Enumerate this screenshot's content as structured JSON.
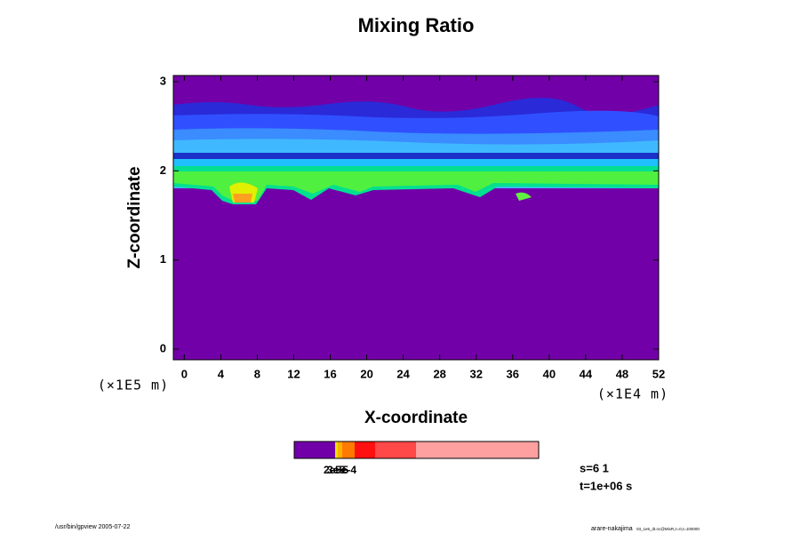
{
  "chart_data": {
    "type": "contour",
    "title": "Mixing Ratio",
    "x_label": "X-coordinate",
    "y_label": "Z-coordinate",
    "x_unit": "(×1E4 m)",
    "y_unit": "(×1E5 m)",
    "xlim": [
      -1.2,
      52
    ],
    "ylim": [
      -0.12,
      3.07
    ],
    "xticks": [
      0,
      4,
      8,
      12,
      16,
      20,
      24,
      28,
      32,
      36,
      40,
      44,
      48,
      52
    ],
    "yticks": [
      0,
      1,
      2,
      3
    ],
    "colorbar_labels": [
      "2e-5",
      "3e-5",
      "5e-4"
    ],
    "info": [
      "s=6 1",
      "t=1e+06 s"
    ],
    "footer_left": "/usr/bin/gpview 2005-07-22",
    "footer_right": "arare-nakajima",
    "footer_right_sub": "03_1e6_dt.nc@MixR,z=0,t=100000"
  }
}
